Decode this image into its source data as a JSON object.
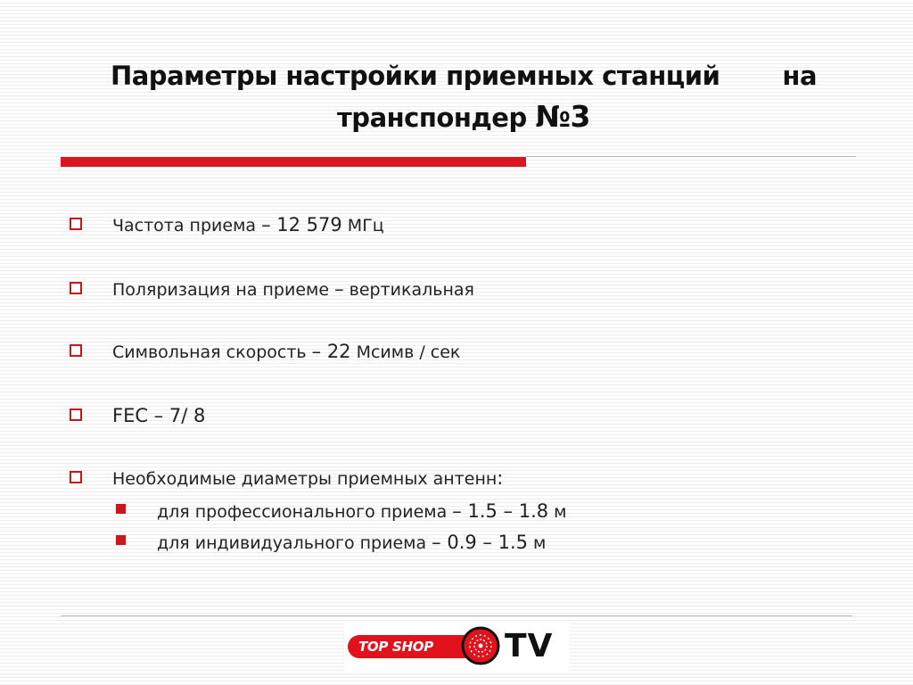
{
  "title": {
    "line1_part1": "Параметры настройки приемных станций",
    "line1_part2": "на",
    "line2_prefix": "транспондер",
    "line2_number": "№3"
  },
  "bullets": [
    {
      "pre": "Частота приема ",
      "value": "– 12 579",
      "post": " МГц"
    },
    {
      "pre": "Поляризация на приеме ",
      "value": "–",
      "post": " вертикальная"
    },
    {
      "pre": "Символьная скорость ",
      "value": "– 22",
      "post": " Мсимв / сек"
    },
    {
      "pre": "",
      "value": "FEC – 7/ 8",
      "post": ""
    },
    {
      "pre": "Необходимые диаметры приемных антенн",
      "value": ":",
      "post": ""
    }
  ],
  "sub_bullets": [
    {
      "pre": "для профессионального приема ",
      "value": "– 1.5 – 1.8",
      "post": " м"
    },
    {
      "pre": "для индивидуального приема ",
      "value": "– 0.9 – 1.5",
      "post": " м"
    }
  ],
  "logo": {
    "brand": "TOP SHOP",
    "tv": "TV",
    "colors": {
      "pill": "#e1121b",
      "tv": "#111111"
    }
  },
  "colors": {
    "accent_red": "#d9171e",
    "bullet_red": "#c8171d",
    "text": "#222222"
  }
}
